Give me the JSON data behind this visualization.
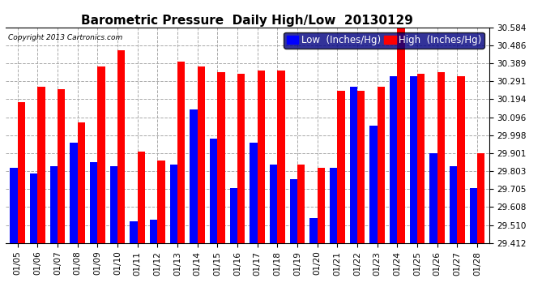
{
  "title": "Barometric Pressure  Daily High/Low  20130129",
  "copyright": "Copyright 2013 Cartronics.com",
  "legend_low": "Low  (Inches/Hg)",
  "legend_high": "High  (Inches/Hg)",
  "ylabel_right_ticks": [
    29.412,
    29.51,
    29.608,
    29.705,
    29.803,
    29.901,
    29.998,
    30.096,
    30.194,
    30.291,
    30.389,
    30.486,
    30.584
  ],
  "dates": [
    "01/05",
    "01/06",
    "01/07",
    "01/08",
    "01/09",
    "01/10",
    "01/11",
    "01/12",
    "01/13",
    "01/14",
    "01/15",
    "01/16",
    "01/17",
    "01/18",
    "01/19",
    "01/20",
    "01/21",
    "01/22",
    "01/23",
    "01/24",
    "01/25",
    "01/26",
    "01/27",
    "01/28"
  ],
  "low": [
    29.82,
    29.79,
    29.83,
    29.96,
    29.85,
    29.83,
    29.53,
    29.54,
    29.84,
    30.14,
    29.98,
    29.71,
    29.96,
    29.84,
    29.76,
    29.55,
    29.82,
    30.26,
    30.05,
    30.32,
    30.32,
    29.9,
    29.83,
    29.71
  ],
  "high": [
    30.18,
    30.26,
    30.25,
    30.07,
    30.37,
    30.46,
    29.91,
    29.86,
    30.4,
    30.37,
    30.34,
    30.33,
    30.35,
    30.35,
    29.84,
    29.82,
    30.24,
    30.24,
    30.26,
    30.58,
    30.33,
    30.34,
    30.32,
    29.9
  ],
  "ylim_min": 29.412,
  "ylim_max": 30.584,
  "bar_width": 0.38,
  "low_color": "#0000FF",
  "high_color": "#FF0000",
  "background_color": "#FFFFFF",
  "grid_color": "#AAAAAA",
  "title_fontsize": 11,
  "tick_fontsize": 7.5,
  "legend_fontsize": 8.5
}
